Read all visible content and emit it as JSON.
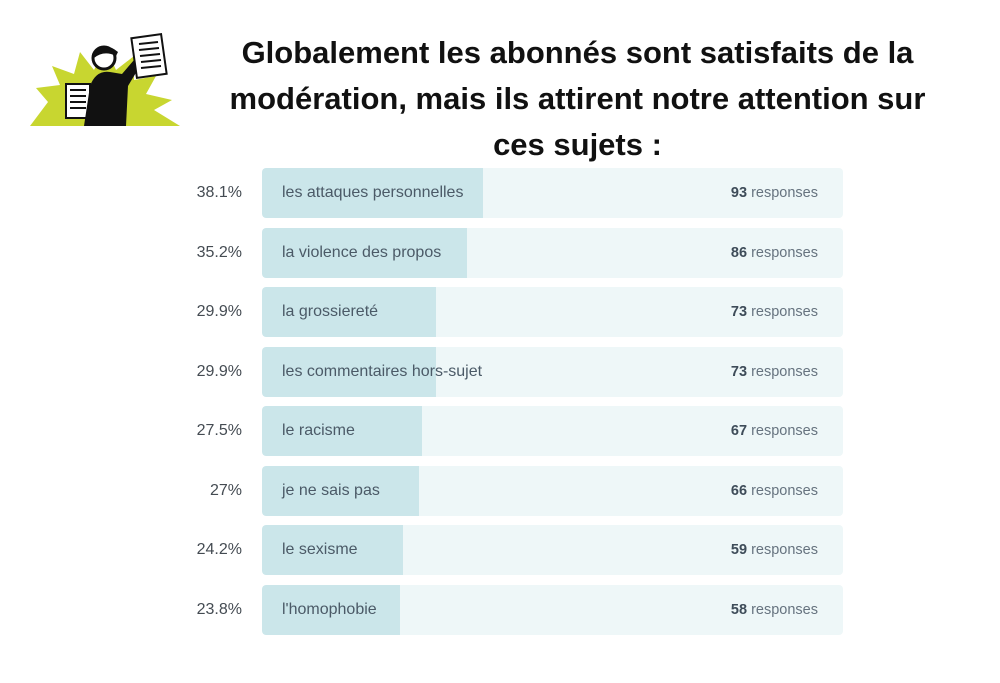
{
  "title_lines": [
    "Globalement les abonnés sont satisfaits de la",
    "modération, mais ils attirent notre attention sur",
    "ces sujets :"
  ],
  "colors": {
    "bar_fill": "#cbe6ea",
    "track": "#eef7f8",
    "logo_burst": "#c8d630"
  },
  "logo": {
    "icon": "newspaper-crier-icon"
  },
  "chart_data": {
    "type": "bar",
    "orientation": "horizontal",
    "title": "Globalement les abonnés sont satisfaits de la modération, mais ils attirent notre attention sur ces sujets :",
    "unit_label": "responses",
    "xlim": [
      0,
      100
    ],
    "categories": [
      "les attaques personnelles",
      "la violence des propos",
      "la grossiereté",
      "les commentaires hors-sujet",
      "le racisme",
      "je ne sais pas",
      "le sexisme",
      "l'homophobie"
    ],
    "percent_labels": [
      "38.1%",
      "35.2%",
      "29.9%",
      "29.9%",
      "27.5%",
      "27%",
      "24.2%",
      "23.8%"
    ],
    "values": [
      38.1,
      35.2,
      29.9,
      29.9,
      27.5,
      27,
      24.2,
      23.8
    ],
    "counts": [
      93,
      86,
      73,
      73,
      67,
      66,
      59,
      58
    ]
  }
}
